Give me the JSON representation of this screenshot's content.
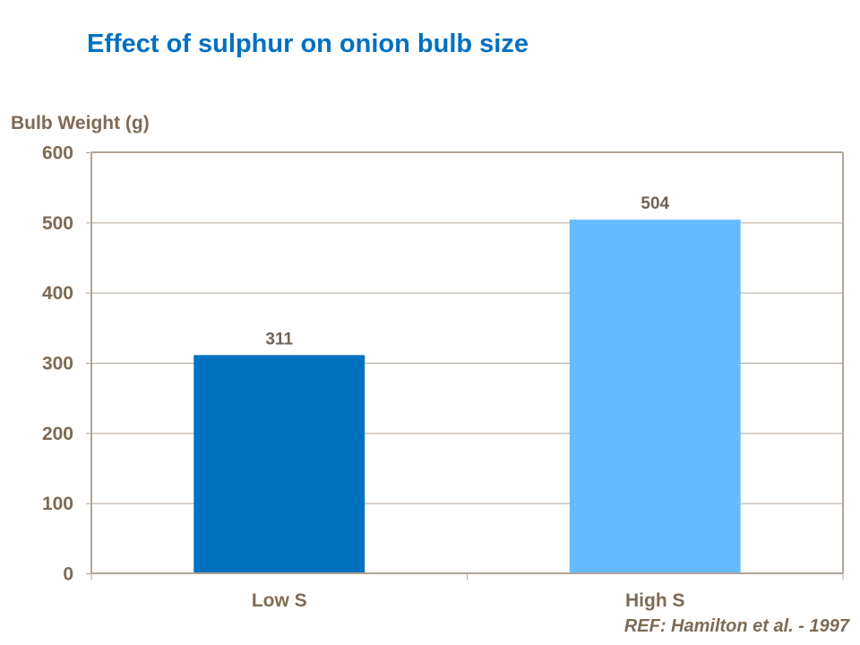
{
  "chart_data": {
    "type": "bar",
    "title": "Effect of sulphur on onion bulb size",
    "xlabel": "",
    "ylabel": "Bulb Weight (g)",
    "categories": [
      "Low S",
      "High S"
    ],
    "values": [
      311,
      504
    ],
    "data_labels": [
      "311",
      "504"
    ],
    "colors": [
      "#0070C0",
      "#66BBFF"
    ],
    "ylim": [
      0,
      600
    ],
    "yticks": [
      0,
      100,
      200,
      300,
      400,
      500,
      600
    ],
    "ytick_labels": [
      "0",
      "100",
      "200",
      "300",
      "400",
      "500",
      "600"
    ],
    "grid": true,
    "legend": "none",
    "axis_color": "#B0A597",
    "text_color": "#7F6A55"
  },
  "reference": "REF: Hamilton et al. - 1997"
}
